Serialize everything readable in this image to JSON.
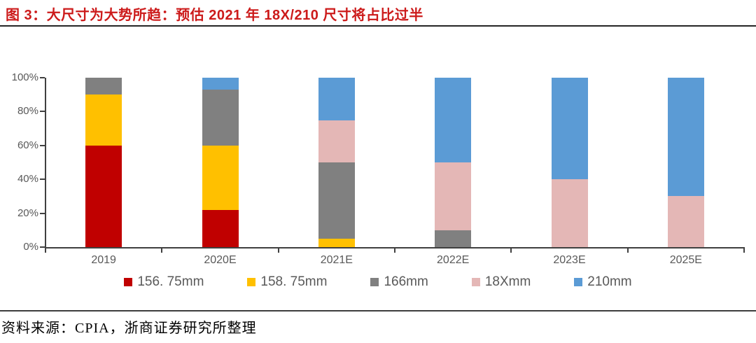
{
  "page": {
    "title": "图 3：大尺寸为大势所趋：预估 2021 年 18X/210 尺寸将占比过半",
    "title_color": "#CC1A1A",
    "source": "资料来源：CPIA，浙商证券研究所整理"
  },
  "chart_data": {
    "type": "bar",
    "stacked": true,
    "title": "图 3：大尺寸为大势所趋：预估 2021 年 18X/210 尺寸将占比过半",
    "categories": [
      "2019",
      "2020E",
      "2021E",
      "2022E",
      "2023E",
      "2025E"
    ],
    "series": [
      {
        "name": "156. 75mm",
        "color": "#C00000",
        "values": [
          60,
          22,
          0,
          0,
          0,
          0
        ]
      },
      {
        "name": "158. 75mm",
        "color": "#FFC000",
        "values": [
          30,
          38,
          5,
          0,
          0,
          0
        ]
      },
      {
        "name": "166mm",
        "color": "#808080",
        "values": [
          10,
          33,
          45,
          10,
          0,
          0
        ]
      },
      {
        "name": "18Xmm",
        "color": "#E4B7B6",
        "values": [
          0,
          0,
          25,
          40,
          40,
          30
        ]
      },
      {
        "name": "210mm",
        "color": "#5B9BD5",
        "values": [
          0,
          7,
          25,
          50,
          60,
          70
        ]
      }
    ],
    "y_ticks": [
      {
        "label": "0%",
        "value": 0
      },
      {
        "label": "20%",
        "value": 20
      },
      {
        "label": "40%",
        "value": 40
      },
      {
        "label": "60%",
        "value": 60
      },
      {
        "label": "80%",
        "value": 80
      },
      {
        "label": "100%",
        "value": 100
      }
    ],
    "ylim": [
      0,
      100
    ],
    "xlabel": "",
    "ylabel": "",
    "grid": false,
    "legend_position": "bottom"
  }
}
